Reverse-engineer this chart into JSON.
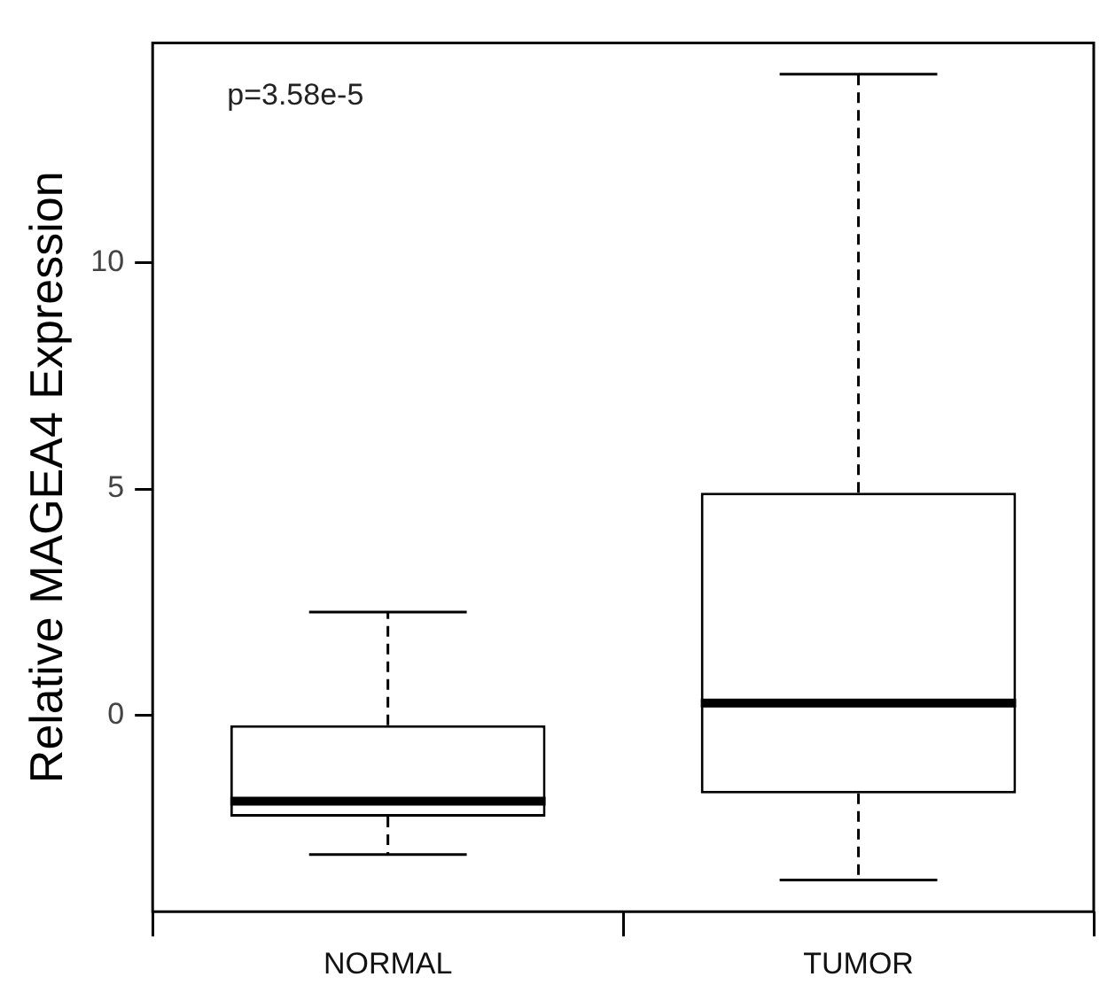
{
  "chart_data": {
    "type": "box",
    "ylabel": "Relative MAGEA4 Expression",
    "categories": [
      "NORMAL",
      "TUMOR"
    ],
    "boxes": [
      {
        "low": -3.08,
        "q1": -2.24,
        "median": -1.9,
        "q3": -0.22,
        "high": 2.28
      },
      {
        "low": -3.64,
        "q1": -1.73,
        "median": 0.27,
        "q3": 4.92,
        "high": 14.17
      }
    ],
    "ylim": [
      -4.34,
      14.86
    ],
    "yticks": [
      0,
      5,
      10
    ],
    "grid": false,
    "legend": false,
    "annotations": [
      "p=3.58e-5"
    ]
  }
}
